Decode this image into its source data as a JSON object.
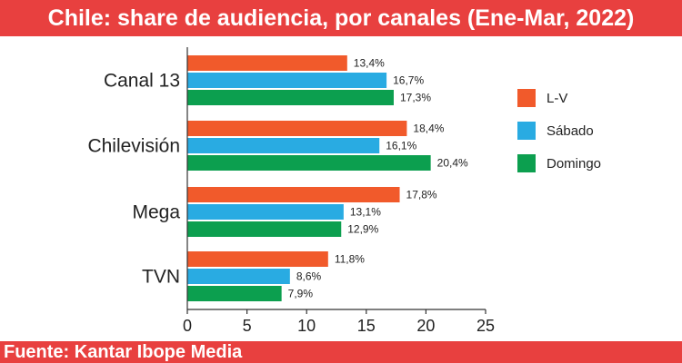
{
  "title": "Chile: share de audiencia, por canales (Ene-Mar, 2022)",
  "source": "Fuente: Kantar Ibope Media",
  "chart_data": {
    "type": "bar",
    "orientation": "horizontal",
    "categories": [
      "Canal 13",
      "Chilevisión",
      "Mega",
      "TVN"
    ],
    "series": [
      {
        "name": "L-V",
        "color": "#f15a2b",
        "values": [
          13.4,
          18.4,
          17.8,
          11.8
        ],
        "labels": [
          "13,4%",
          "18,4%",
          "17,8%",
          "11,8%"
        ]
      },
      {
        "name": "Sábado",
        "color": "#29abe2",
        "values": [
          16.7,
          16.1,
          13.1,
          8.6
        ],
        "labels": [
          "16,7%",
          "16,1%",
          "13,1%",
          "8,6%"
        ]
      },
      {
        "name": "Domingo",
        "color": "#0c9f4f",
        "values": [
          17.3,
          20.4,
          12.9,
          7.9
        ],
        "labels": [
          "17,3%",
          "20,4%",
          "12,9%",
          "7,9%"
        ]
      }
    ],
    "xlim": [
      0,
      25
    ],
    "xticks": [
      0,
      5,
      10,
      15,
      20,
      25
    ],
    "xtick_labels": [
      "0",
      "5",
      "10",
      "15",
      "20",
      "25"
    ],
    "grid": false,
    "legend_position": "right"
  }
}
